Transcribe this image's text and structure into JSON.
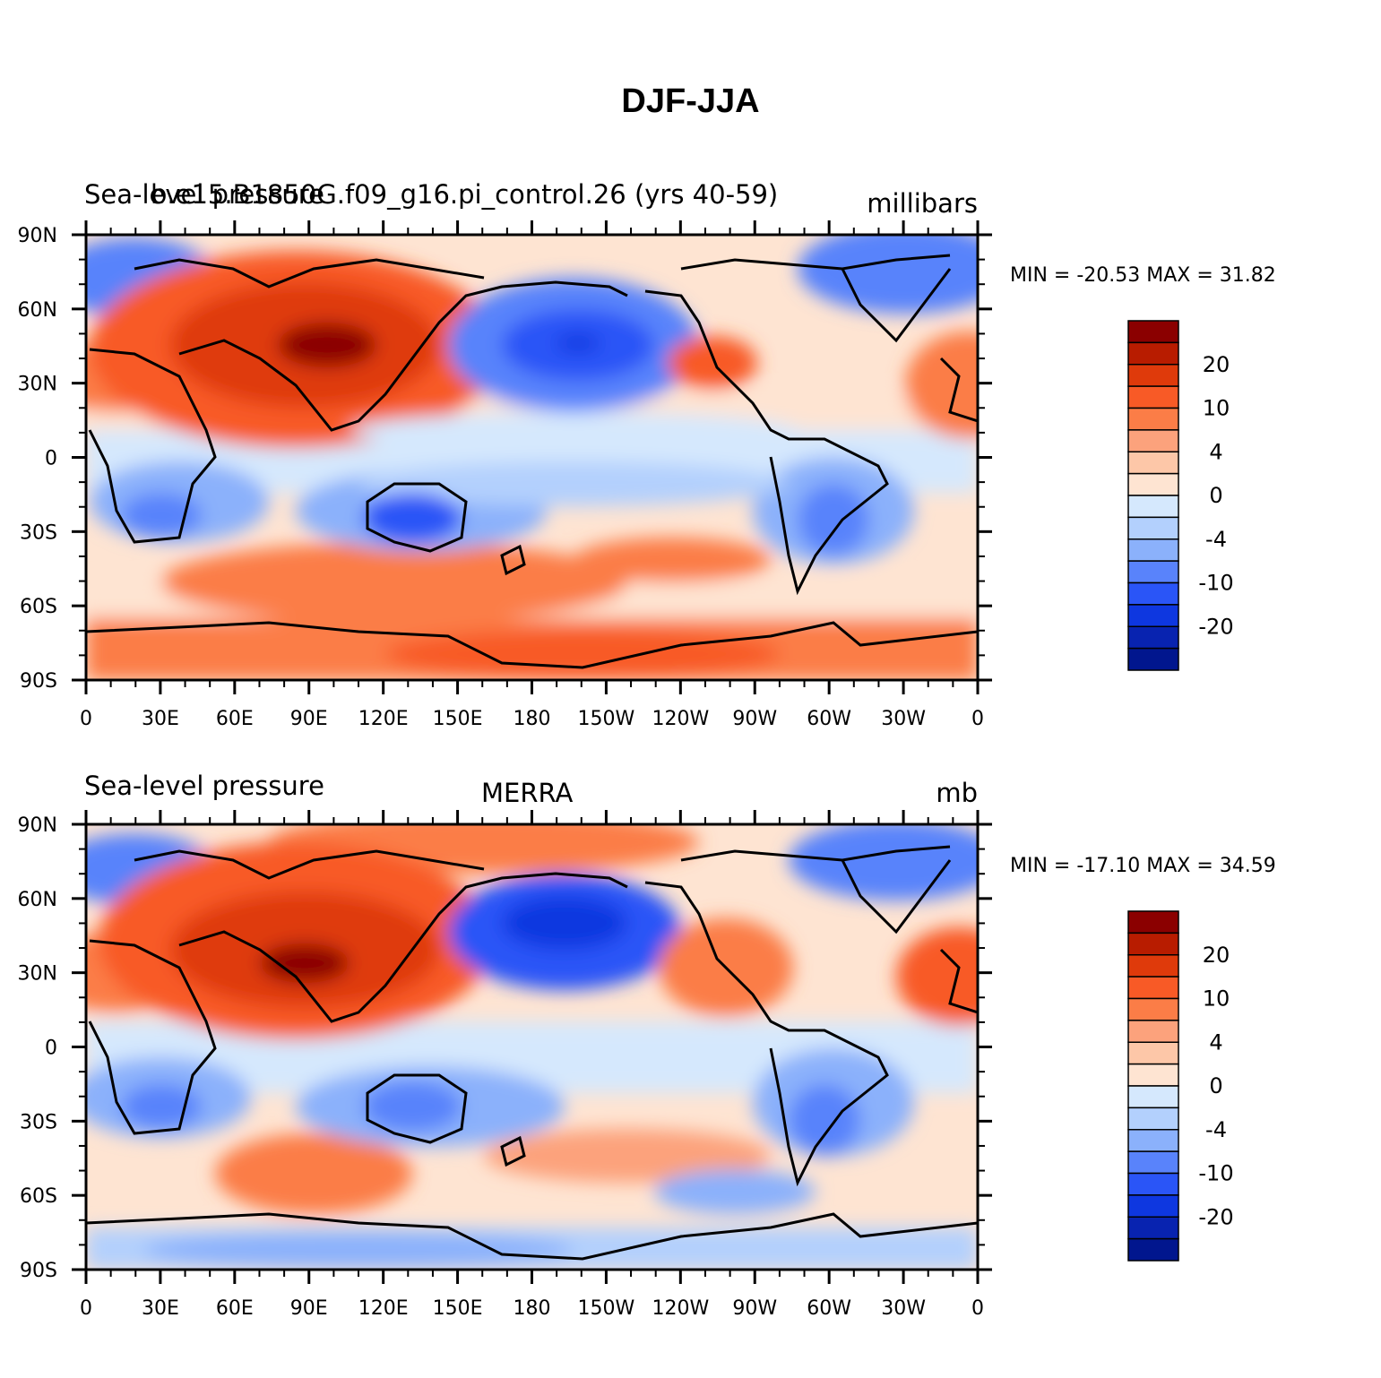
{
  "title": "DJF-JJA",
  "panels": [
    {
      "left_label": "Sea-level pressure",
      "center_label": "b.e15.B1850G.f09_g16.pi_control.26 (yrs 40-59)",
      "units": "millibars",
      "min_max": "MIN = -20.53 MAX =   31.82",
      "min": -20.53,
      "max": 31.82
    },
    {
      "left_label": "Sea-level pressure",
      "center_label": "MERRA",
      "units": "mb",
      "min_max": "MIN = -17.10 MAX =   34.59",
      "min": -17.1,
      "max": 34.59
    }
  ],
  "chart_data": [
    {
      "type": "heatmap",
      "title": "DJF-JJA",
      "subtitle": "b.e15.B1850G.f09_g16.pi_control.26 (yrs 40-59)",
      "variable": "Sea-level pressure",
      "units": "millibars",
      "x_ticks": [
        "0",
        "30E",
        "60E",
        "90E",
        "120E",
        "150E",
        "180",
        "150W",
        "120W",
        "90W",
        "60W",
        "30W",
        "0"
      ],
      "y_ticks": [
        "90N",
        "60N",
        "30N",
        "0",
        "30S",
        "60S",
        "90S"
      ],
      "xlim": [
        0,
        360
      ],
      "ylim": [
        -90,
        90
      ],
      "colorbar_labels": [
        "20",
        "10",
        "4",
        "0",
        "-4",
        "-10",
        "-20"
      ],
      "colorbar_colors": [
        "#8b0000",
        "#b81c00",
        "#df3a0b",
        "#f85a26",
        "#fb7d47",
        "#fca27c",
        "#fdc7a8",
        "#fee4d2",
        "#d5e8fd",
        "#b3d0fd",
        "#8bb1fb",
        "#5983fb",
        "#2a55f7",
        "#0e37e0",
        "#0823b0",
        "#01168e"
      ],
      "min": -20.53,
      "max": 31.82
    },
    {
      "type": "heatmap",
      "title": "DJF-JJA",
      "subtitle": "MERRA",
      "variable": "Sea-level pressure",
      "units": "mb",
      "x_ticks": [
        "0",
        "30E",
        "60E",
        "90E",
        "120E",
        "150E",
        "180",
        "150W",
        "120W",
        "90W",
        "60W",
        "30W",
        "0"
      ],
      "y_ticks": [
        "90N",
        "60N",
        "30N",
        "0",
        "30S",
        "60S",
        "90S"
      ],
      "xlim": [
        0,
        360
      ],
      "ylim": [
        -90,
        90
      ],
      "colorbar_labels": [
        "20",
        "10",
        "4",
        "0",
        "-4",
        "-10",
        "-20"
      ],
      "colorbar_colors": [
        "#8b0000",
        "#b81c00",
        "#df3a0b",
        "#f85a26",
        "#fb7d47",
        "#fca27c",
        "#fdc7a8",
        "#fee4d2",
        "#d5e8fd",
        "#b3d0fd",
        "#8bb1fb",
        "#5983fb",
        "#2a55f7",
        "#0e37e0",
        "#0823b0",
        "#01168e"
      ],
      "min": -17.1,
      "max": 34.59
    }
  ]
}
